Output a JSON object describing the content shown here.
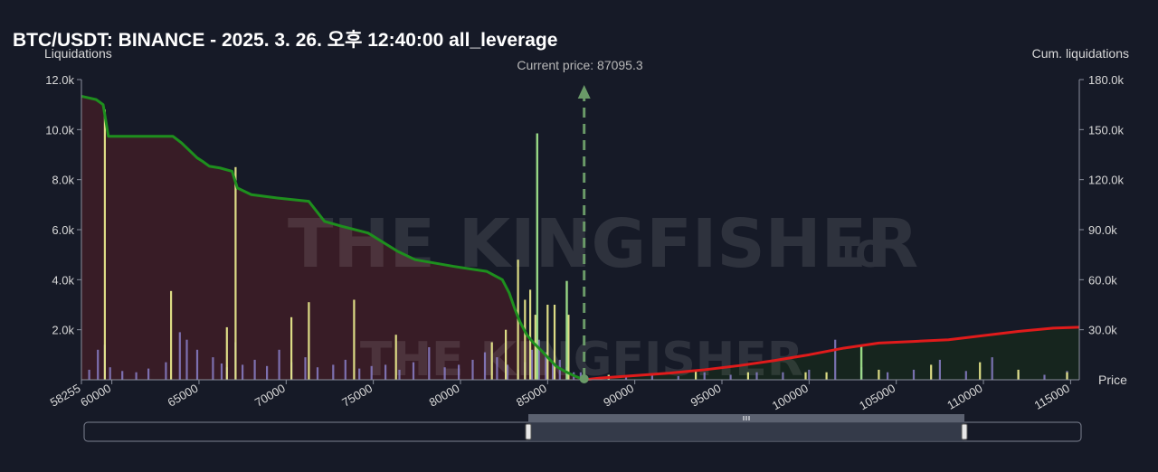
{
  "title": "BTC/USDT: BINANCE - 2025. 3. 26. 오후 12:40:00 all_leverage",
  "current_price_label": "Current price: 87095.3",
  "left_axis_title": "Liquidations",
  "right_axis_title": "Cum. liquidations",
  "x_axis_title": "Price",
  "watermark": {
    "brand": "THE KINGFISHER",
    "suffix": ".IO"
  },
  "colors": {
    "background": "#161a27",
    "short_cum_line": "#1e8f1e",
    "long_cum_line": "#e01b1b",
    "short_area": "#3a1c26",
    "long_area": "#16261e",
    "bar_purple": "#8a7fc9",
    "bar_yellow": "#e6e68a",
    "bar_green": "#9ee08a",
    "current_price": "#6a9a68"
  },
  "chart_data": {
    "type": "bar",
    "x_range": [
      58255,
      115500
    ],
    "x_ticks": [
      58255,
      60000,
      65000,
      70000,
      75000,
      80000,
      85000,
      90000,
      95000,
      100000,
      105000,
      110000,
      115000
    ],
    "y_left": {
      "range": [
        0,
        12000
      ],
      "ticks": [
        2000,
        4000,
        6000,
        8000,
        10000,
        12000
      ],
      "tick_labels": [
        "2.0k",
        "4.0k",
        "6.0k",
        "8.0k",
        "10.0k",
        "12.0k"
      ]
    },
    "y_right": {
      "range": [
        0,
        180000
      ],
      "ticks": [
        30000,
        60000,
        90000,
        120000,
        150000,
        180000
      ],
      "tick_labels": [
        "30.0k",
        "60.0k",
        "90.0k",
        "120.0k",
        "150.0k",
        "180.0k"
      ]
    },
    "current_price": 87095.3,
    "grid": false,
    "series": [
      {
        "type": "line",
        "x": [
          58255,
          59100,
          59500,
          59800,
          60500,
          62000,
          63500,
          64000,
          64900,
          65200,
          65600,
          66200,
          66900,
          67200,
          68000,
          69500,
          71300,
          72200,
          73200,
          74700,
          76400,
          77400,
          79600,
          81500,
          82400,
          82800,
          83100,
          83400,
          83800,
          84200,
          84600,
          85000,
          85500,
          86000,
          86500,
          87095
        ],
        "values": [
          170000,
          168000,
          165000,
          146000,
          146000,
          146000,
          146000,
          142000,
          133000,
          131000,
          128000,
          127000,
          125000,
          115000,
          111000,
          109000,
          107000,
          95000,
          92000,
          88000,
          77000,
          72000,
          68000,
          65000,
          60000,
          52000,
          43000,
          35000,
          27000,
          22000,
          18000,
          13500,
          8000,
          5000,
          2500,
          0
        ]
      },
      {
        "type": "line",
        "x": [
          87095,
          88000,
          90000,
          92000,
          94000,
          96000,
          98000,
          100000,
          102000,
          104000,
          106000,
          108000,
          110000,
          112000,
          114000,
          115500
        ],
        "values": [
          0,
          1000,
          2500,
          4000,
          6000,
          8500,
          11500,
          15000,
          19000,
          22000,
          23000,
          24000,
          26500,
          29000,
          31000,
          31500
        ]
      },
      {
        "type": "bar",
        "x": [
          58700,
          59200,
          59600,
          59900,
          60600,
          61400,
          62100,
          63100,
          63900,
          64300,
          64900,
          65800,
          66300,
          66600,
          67100,
          67500,
          68200,
          68900,
          69600,
          70300,
          71100,
          71800,
          72700,
          73400,
          74200,
          74900,
          75700,
          76500,
          77300,
          78200,
          79100,
          79900,
          80700,
          81400,
          82100,
          82700,
          83300,
          83700,
          84100,
          84500,
          84900,
          85300,
          85700,
          86100,
          86500,
          86900,
          88500,
          89500,
          91000,
          92500,
          94000,
          95500,
          97000,
          98500,
          100000,
          101500,
          103000,
          104500,
          106000,
          107500,
          109000,
          110500,
          112000,
          113500,
          114800
        ],
        "values": [
          400,
          1200,
          1400,
          500,
          350,
          300,
          450,
          700,
          1900,
          1600,
          1200,
          900,
          650,
          500,
          1500,
          600,
          800,
          550,
          1200,
          700,
          900,
          500,
          600,
          800,
          450,
          550,
          600,
          400,
          700,
          1300,
          500,
          600,
          800,
          1100,
          900,
          600,
          400,
          700,
          1200,
          1600,
          1100,
          700,
          800,
          500,
          300,
          300,
          200,
          150,
          250,
          150,
          300,
          200,
          300,
          300,
          400,
          1600,
          500,
          300,
          400,
          800,
          350,
          900,
          300,
          200,
          350
        ]
      },
      {
        "type": "bar",
        "x": [
          59600,
          63400,
          66600,
          67100,
          70300,
          71300,
          73900,
          76300,
          81800,
          82600,
          83300,
          83700,
          84000,
          84300,
          85000,
          85400,
          86200,
          88500,
          93500,
          96500,
          99800,
          101000,
          104000,
          107000,
          109800,
          112000,
          114800
        ],
        "values": [
          10800,
          3550,
          2100,
          8500,
          2500,
          3100,
          3200,
          1800,
          1500,
          2000,
          4800,
          3200,
          3600,
          2600,
          3000,
          3000,
          2600,
          200,
          400,
          300,
          300,
          300,
          400,
          600,
          700,
          400,
          300
        ]
      },
      {
        "type": "bar",
        "x": [
          84400,
          86100,
          103000
        ],
        "values": [
          9850,
          3950,
          1400
        ]
      }
    ]
  }
}
